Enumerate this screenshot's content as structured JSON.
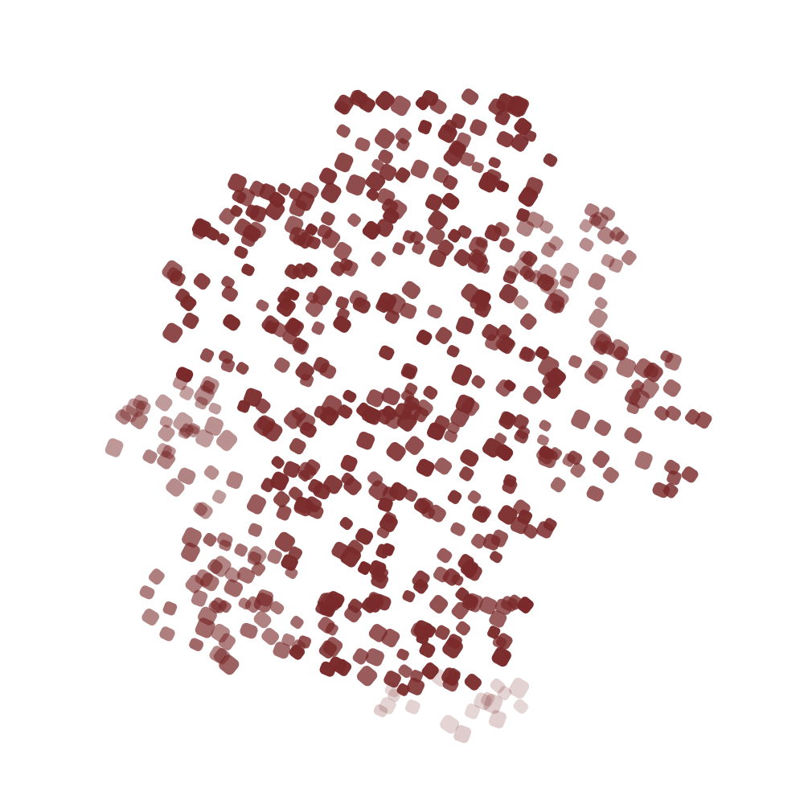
{
  "scene": {
    "background": "#ffffff",
    "particle_color": "#7a2a2a",
    "particle_color_faded": "#b08080",
    "shape": "rounded-square-particle-cluster"
  }
}
